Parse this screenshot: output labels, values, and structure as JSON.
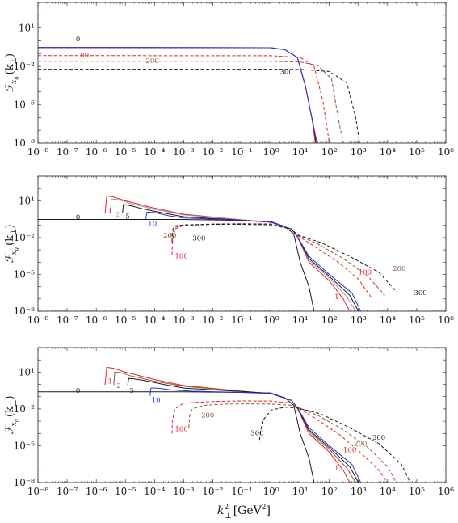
{
  "figure": {
    "xlabel": {
      "base": "k",
      "sub": "⊥",
      "sup": "2",
      "unit": "[GeV",
      "unit_sup": "2",
      "unit_close": "]"
    },
    "ylabel": {
      "base": "ℱ",
      "sub": "x",
      "subsub": "g",
      "arg": "(k",
      "arg_sub": "⊥",
      "arg_close": ")"
    },
    "x_tick_labels": [
      "10⁻⁸",
      "10⁻⁷",
      "10⁻⁶",
      "10⁻⁵",
      "10⁻⁴",
      "10⁻³",
      "10⁻²",
      "10⁻¹",
      "10⁰",
      "10¹",
      "10²",
      "10³",
      "10⁴",
      "10⁵",
      "10⁶"
    ],
    "y_tick_labels": [
      "10¹",
      "10⁻²",
      "10⁻⁵",
      "10⁻⁸"
    ]
  },
  "colors": {
    "black": "#1a1a1a",
    "red": "#e8202a",
    "blue": "#2233dd",
    "brown": "#8a5a3a",
    "darkred": "#b03a2e",
    "gray": "#a0a0a0"
  },
  "chart_data": [
    {
      "type": "line",
      "x_scale": "log",
      "y_scale": "log",
      "xlim": [
        1e-08,
        1000000.0
      ],
      "ylim": [
        1e-08,
        1000.0
      ],
      "grid": false,
      "series": [
        {
          "name": "0",
          "color": "#1a1a1a",
          "dash": "solid",
          "x": [
            1e-08,
            1,
            3,
            8,
            15,
            25,
            35
          ],
          "y": [
            0.3,
            0.29,
            0.2,
            0.05,
            0.0003,
            1e-06,
            1e-08
          ]
        },
        {
          "color": "#e8202a",
          "dash": "solid",
          "x": [
            1e-08,
            1,
            3,
            8,
            15,
            25,
            33
          ],
          "y": [
            0.3,
            0.29,
            0.2,
            0.05,
            0.0003,
            1e-06,
            1e-08
          ]
        },
        {
          "color": "#2233dd",
          "dash": "solid",
          "x": [
            1e-08,
            1,
            3,
            8,
            15,
            25,
            38
          ],
          "y": [
            0.3,
            0.29,
            0.2,
            0.05,
            0.0003,
            1e-06,
            1e-08
          ]
        },
        {
          "name": "100",
          "color": "#e8202a",
          "dash": "dashed",
          "x": [
            1e-08,
            1,
            10,
            30,
            60,
            100
          ],
          "y": [
            0.07,
            0.068,
            0.05,
            0.01,
            2e-05,
            1e-08
          ]
        },
        {
          "name": "200",
          "color": "#8a5a3a",
          "dash": "dashed",
          "x": [
            1e-08,
            1,
            10,
            40,
            120,
            200,
            300
          ],
          "y": [
            0.025,
            0.025,
            0.022,
            0.012,
            0.001,
            1e-06,
            1e-08
          ]
        },
        {
          "name": "300",
          "color": "#1a1a1a",
          "dash": "dashed",
          "x": [
            1e-08,
            1,
            10,
            100,
            400,
            800,
            1100
          ],
          "y": [
            0.006,
            0.006,
            0.0058,
            0.004,
            0.0005,
            1e-06,
            1e-08
          ]
        }
      ],
      "annotations": [
        {
          "text": "0",
          "x": 2e-07,
          "y": 0.9,
          "color": "#1a1a1a"
        },
        {
          "text": "100",
          "x": 2e-07,
          "y": 0.05,
          "color": "#e8202a"
        },
        {
          "text": "200",
          "x": 5e-05,
          "y": 0.018,
          "color": "#8a5a3a"
        },
        {
          "text": "300",
          "x": 2,
          "y": 0.0025,
          "color": "#1a1a1a"
        }
      ]
    },
    {
      "type": "line",
      "x_scale": "log",
      "y_scale": "log",
      "xlim": [
        1e-08,
        1000000.0
      ],
      "ylim": [
        1e-08,
        1000.0
      ],
      "grid": false,
      "series": [
        {
          "name": "0",
          "color": "#1a1a1a",
          "dash": "solid",
          "x": [
            1e-08,
            0.001,
            0.1,
            1,
            3,
            6,
            10,
            20,
            30
          ],
          "y": [
            0.3,
            0.3,
            0.25,
            0.2,
            0.08,
            0.02,
            0.0001,
            1e-06,
            1e-08
          ]
        },
        {
          "name": "1",
          "color": "#e8202a",
          "dash": "solid",
          "x": [
            2e-06,
            2.3e-06,
            4e-06,
            1e-05,
            0.0001,
            0.001,
            0.1,
            1,
            5,
            8,
            20,
            100,
            300,
            500
          ],
          "y": [
            0.9,
            25,
            20,
            10,
            2.5,
            0.8,
            0.28,
            0.18,
            0.05,
            0.012,
            0.0001,
            3e-06,
            1e-07,
            1e-08
          ]
        },
        {
          "name": "2",
          "color": "#a0a0a0",
          "dash": "solid",
          "x": [
            3e-06,
            3.3e-06,
            6e-06,
            1.5e-05,
            0.0001,
            0.001,
            0.1,
            1,
            5,
            8,
            20,
            100,
            400,
            800
          ],
          "y": [
            0.9,
            14,
            12,
            6,
            2,
            0.7,
            0.27,
            0.18,
            0.05,
            0.012,
            0.00015,
            5e-06,
            1.5e-07,
            1e-08
          ]
        },
        {
          "name": "5",
          "color": "#1a1a1a",
          "dash": "solid",
          "x": [
            8e-06,
            8.5e-06,
            1.5e-05,
            4e-05,
            0.0002,
            0.001,
            0.1,
            1,
            5,
            8,
            20,
            100,
            500,
            1000
          ],
          "y": [
            1.0,
            5,
            4,
            2.2,
            1,
            0.5,
            0.26,
            0.18,
            0.05,
            0.012,
            0.0002,
            7e-06,
            2e-07,
            1e-08
          ]
        },
        {
          "name": "10",
          "color": "#2233dd",
          "dash": "solid",
          "x": [
            5e-05,
            5.5e-05,
            0.0001,
            0.0003,
            0.001,
            0.1,
            1,
            5,
            8,
            20,
            100,
            600,
            1200
          ],
          "y": [
            0.3,
            1.2,
            1.1,
            0.6,
            0.4,
            0.25,
            0.18,
            0.05,
            0.012,
            0.0003,
            1e-05,
            3e-07,
            1e-08
          ]
        },
        {
          "name": "100",
          "color": "#e8202a",
          "dash": "dashed",
          "x": [
            0.0004,
            0.00041,
            0.0005,
            0.001,
            0.01,
            0.1,
            1,
            5,
            8,
            30,
            200,
            1000,
            3000
          ],
          "y": [
            0.0004,
            0.003,
            0.05,
            0.1,
            0.13,
            0.14,
            0.13,
            0.05,
            0.015,
            0.002,
            0.0001,
            4e-06,
            1e-07
          ]
        },
        {
          "name": "200",
          "color": "#8a5a3a",
          "dash": "dashed",
          "x": [
            0.0004,
            0.00041,
            0.0005,
            0.001,
            0.01,
            0.1,
            1,
            5,
            8,
            40,
            300,
            2000,
            8000
          ],
          "y": [
            0.004,
            0.02,
            0.07,
            0.1,
            0.12,
            0.13,
            0.12,
            0.05,
            0.016,
            0.003,
            0.0002,
            8e-06,
            2e-07
          ]
        },
        {
          "name": "300",
          "color": "#1a1a1a",
          "dash": "dashed",
          "x": [
            0.0004,
            0.00041,
            0.0005,
            0.001,
            0.01,
            0.1,
            1,
            5,
            8,
            50,
            500,
            5000,
            20000
          ],
          "y": [
            0.005,
            0.04,
            0.09,
            0.11,
            0.12,
            0.12,
            0.11,
            0.05,
            0.017,
            0.004,
            0.0003,
            1.5e-05,
            4e-07
          ]
        }
      ],
      "annotations": [
        {
          "text": "0",
          "x": 2e-07,
          "y": 0.3,
          "color": "#1a1a1a"
        },
        {
          "text": "1",
          "x": 2.5e-06,
          "y": 0.9,
          "color": "#e8202a"
        },
        {
          "text": "2",
          "x": 4.5e-06,
          "y": 0.5,
          "color": "#a0a0a0"
        },
        {
          "text": "5",
          "x": 1e-05,
          "y": 0.35,
          "color": "#1a1a1a"
        },
        {
          "text": "10",
          "x": 6e-05,
          "y": 0.09,
          "color": "#2233dd"
        },
        {
          "text": "200",
          "x": 0.0002,
          "y": 0.01,
          "color": "#8a5a3a"
        },
        {
          "text": "300",
          "x": 0.002,
          "y": 0.006,
          "color": "#1a1a1a"
        },
        {
          "text": "100",
          "x": 0.0005,
          "y": 0.0002,
          "color": "#e8202a"
        },
        {
          "text": "1",
          "x": 150,
          "y": 1e-07,
          "color": "#e8202a"
        },
        {
          "text": "100",
          "x": 1000.0,
          "y": 1e-05,
          "color": "#e8202a"
        },
        {
          "text": "200",
          "x": 15000.0,
          "y": 2e-05,
          "color": "#8a5a3a"
        },
        {
          "text": "300",
          "x": 80000.0,
          "y": 2e-07,
          "color": "#1a1a1a"
        }
      ]
    },
    {
      "type": "line",
      "x_scale": "log",
      "y_scale": "log",
      "xlim": [
        1e-08,
        1000000.0
      ],
      "ylim": [
        1e-08,
        1000.0
      ],
      "grid": false,
      "series": [
        {
          "name": "0",
          "color": "#1a1a1a",
          "dash": "solid",
          "x": [
            1e-08,
            0.001,
            0.1,
            1,
            3,
            6,
            10,
            20,
            30
          ],
          "y": [
            0.25,
            0.25,
            0.22,
            0.2,
            0.08,
            0.02,
            0.0001,
            1e-06,
            1e-08
          ]
        },
        {
          "name": "1",
          "color": "#e8202a",
          "dash": "solid",
          "x": [
            2e-06,
            2.3e-06,
            4e-06,
            1e-05,
            0.0001,
            0.001,
            0.1,
            1,
            5,
            8,
            20,
            100,
            300,
            500
          ],
          "y": [
            0.9,
            25,
            20,
            10,
            2.5,
            0.8,
            0.28,
            0.18,
            0.05,
            0.012,
            0.0001,
            3e-06,
            1e-07,
            1e-08
          ]
        },
        {
          "name": "2",
          "color": "#8a5a3a",
          "dash": "solid",
          "x": [
            4e-06,
            4.3e-06,
            7e-06,
            1.5e-05,
            0.0001,
            0.001,
            0.1,
            1,
            5,
            8,
            20,
            100,
            400,
            800
          ],
          "y": [
            0.9,
            10,
            9,
            5,
            1.8,
            0.7,
            0.27,
            0.18,
            0.05,
            0.012,
            0.00015,
            5e-06,
            1.5e-07,
            1e-08
          ]
        },
        {
          "name": "5",
          "color": "#1a1a1a",
          "dash": "solid",
          "x": [
            1.2e-05,
            1.3e-05,
            2e-05,
            5e-05,
            0.0002,
            0.001,
            0.1,
            1,
            5,
            8,
            20,
            100,
            500,
            1000
          ],
          "y": [
            0.9,
            3,
            2.8,
            2,
            1,
            0.5,
            0.26,
            0.18,
            0.05,
            0.012,
            0.0002,
            7e-06,
            2e-07,
            1e-08
          ]
        },
        {
          "name": "10",
          "color": "#2233dd",
          "dash": "solid",
          "x": [
            7e-05,
            7.5e-05,
            0.00012,
            0.0004,
            0.002,
            0.1,
            1,
            5,
            8,
            20,
            100,
            600,
            1200
          ],
          "y": [
            0.12,
            0.5,
            0.5,
            0.35,
            0.28,
            0.22,
            0.18,
            0.05,
            0.013,
            0.0003,
            1e-05,
            3e-07,
            1e-08
          ]
        },
        {
          "name": "100",
          "color": "#e8202a",
          "dash": "dashed",
          "x": [
            0.0004,
            0.00041,
            0.0005,
            0.001,
            0.01,
            0.1,
            1,
            5,
            8,
            30,
            200,
            1000,
            5000,
            10000
          ],
          "y": [
            0.0001,
            0.001,
            0.01,
            0.03,
            0.04,
            0.045,
            0.044,
            0.03,
            0.013,
            0.002,
            0.0001,
            4e-06,
            1e-07,
            1e-08
          ]
        },
        {
          "name": "200",
          "color": "#8a5a3a",
          "dash": "dashed",
          "x": [
            0.0015,
            0.0016,
            0.002,
            0.005,
            0.03,
            0.2,
            1,
            5,
            8,
            40,
            300,
            2000,
            10000,
            20000
          ],
          "y": [
            0.0003,
            0.003,
            0.01,
            0.02,
            0.025,
            0.026,
            0.025,
            0.02,
            0.014,
            0.003,
            0.0002,
            8e-06,
            2e-07,
            1e-08
          ]
        },
        {
          "name": "300",
          "color": "#1a1a1a",
          "dash": "dashed",
          "x": [
            0.4,
            0.5,
            1,
            3,
            8,
            50,
            500,
            5000,
            30000,
            60000
          ],
          "y": [
            3e-05,
            0.001,
            0.008,
            0.014,
            0.012,
            0.004,
            0.0003,
            1.5e-05,
            3e-07,
            1e-08
          ]
        }
      ],
      "annotations": [
        {
          "text": "0",
          "x": 2e-07,
          "y": 0.2,
          "color": "#1a1a1a"
        },
        {
          "text": "1",
          "x": 2.5e-06,
          "y": 1.2,
          "color": "#e8202a"
        },
        {
          "text": "2",
          "x": 5e-06,
          "y": 0.5,
          "color": "#8a5a3a"
        },
        {
          "text": "5",
          "x": 1.4e-05,
          "y": 0.2,
          "color": "#1a1a1a"
        },
        {
          "text": "10",
          "x": 8e-05,
          "y": 0.035,
          "color": "#2233dd"
        },
        {
          "text": "100",
          "x": 0.0005,
          "y": 0.00015,
          "color": "#e8202a"
        },
        {
          "text": "200",
          "x": 0.004,
          "y": 0.002,
          "color": "#8a5a3a"
        },
        {
          "text": "300",
          "x": 0.2,
          "y": 7e-05,
          "color": "#1a1a1a"
        },
        {
          "text": "1",
          "x": 150,
          "y": 1e-07,
          "color": "#e8202a"
        },
        {
          "text": "100",
          "x": 300,
          "y": 3e-06,
          "color": "#e8202a"
        },
        {
          "text": "200",
          "x": 700,
          "y": 1e-05,
          "color": "#8a5a3a"
        },
        {
          "text": "300",
          "x": 3000.0,
          "y": 3e-05,
          "color": "#1a1a1a"
        }
      ]
    }
  ]
}
